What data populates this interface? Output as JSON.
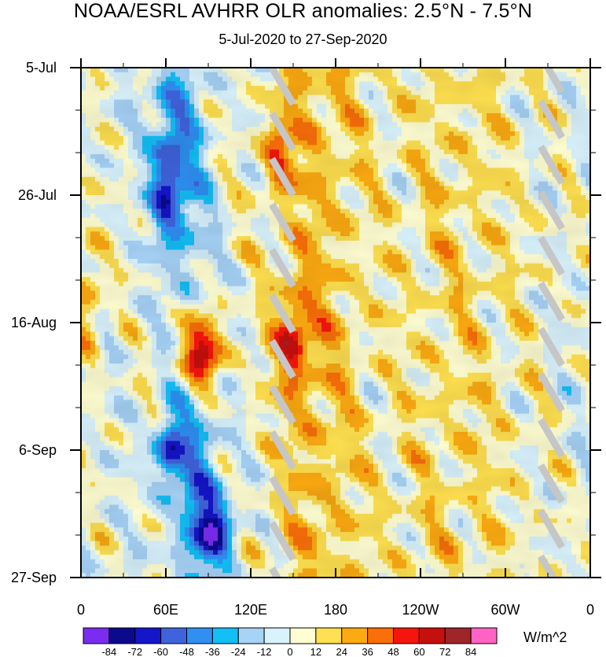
{
  "chart_data": {
    "type": "heatmap",
    "title": "NOAA/ESRL AVHRR OLR anomalies: 2.5°N - 7.5°N",
    "subtitle": "5-Jul-2020 to 27-Sep-2020",
    "xlabel": "",
    "ylabel": "",
    "x_tick_labels": [
      "0",
      "60E",
      "120E",
      "180",
      "120W",
      "60W",
      "0"
    ],
    "x_tick_values_deg_east": [
      0,
      60,
      120,
      180,
      240,
      300,
      360
    ],
    "y_tick_labels": [
      "5-Jul",
      "26-Jul",
      "16-Aug",
      "6-Sep",
      "27-Sep"
    ],
    "y_tick_values_days": [
      0,
      21,
      42,
      63,
      84
    ],
    "xlim": [
      0,
      360
    ],
    "ylim_days": [
      0,
      84
    ],
    "colorbar": {
      "units": "W/m^2",
      "levels": [
        -84,
        -72,
        -60,
        -48,
        -36,
        -24,
        -12,
        0,
        12,
        24,
        36,
        48,
        60,
        72,
        84
      ],
      "level_labels": [
        "-84",
        "-72",
        "-60",
        "-48",
        "-36",
        "-24",
        "-12",
        "0",
        "12",
        "24",
        "36",
        "48",
        "60",
        "72",
        "84"
      ],
      "colors": [
        "#7b2cf0",
        "#0b0a8c",
        "#1515c9",
        "#3f63dc",
        "#2f8ff2",
        "#13bff6",
        "#a7d3f7",
        "#d9f3fd",
        "#fffed2",
        "#ffe050",
        "#fcaa12",
        "#fa6f09",
        "#f5150d",
        "#c6100e",
        "#9f2528",
        "#ff64c5"
      ]
    },
    "missing_color": "#c6c6c6",
    "features": [
      {
        "label": "negative anomaly band",
        "lon_range": [
          50,
          100
        ],
        "days": [
          0,
          84
        ]
      },
      {
        "label": "positive anomaly maximum",
        "lon": 85,
        "day": 47,
        "value_approx": 72
      },
      {
        "label": "positive anomaly region",
        "lon_range": [
          130,
          200
        ],
        "day_range": [
          5,
          75
        ]
      },
      {
        "label": "weak positive region",
        "lon_range": [
          200,
          330
        ],
        "day_range": [
          0,
          84
        ]
      }
    ]
  }
}
